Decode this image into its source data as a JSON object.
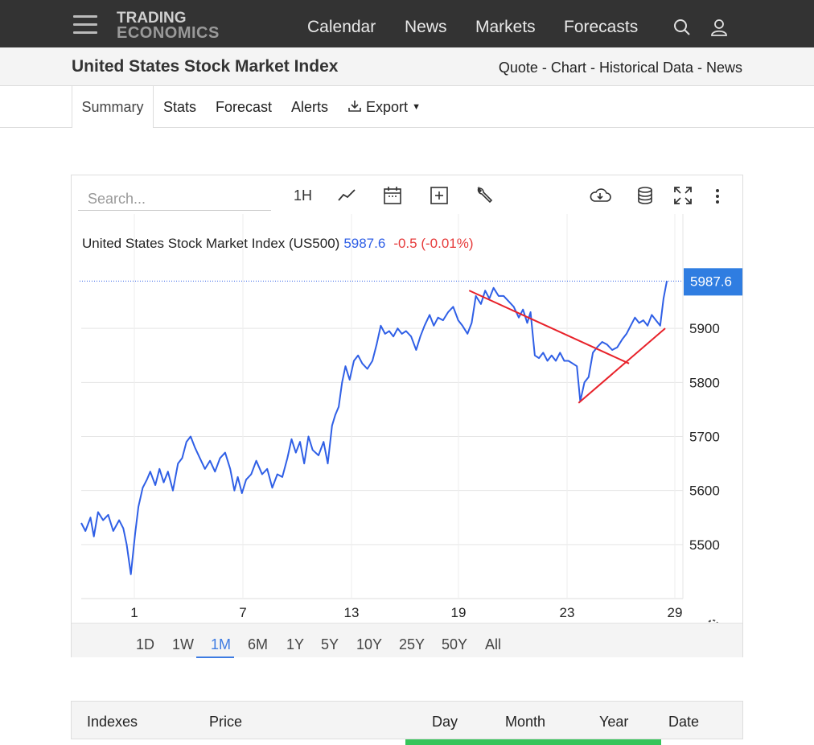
{
  "brand": {
    "line1": "TRADING",
    "line2": "ECONOMICS"
  },
  "nav": {
    "calendar": "Calendar",
    "news": "News",
    "markets": "Markets",
    "forecasts": "Forecasts"
  },
  "page": {
    "title": "United States Stock Market Index"
  },
  "quicklinks": {
    "quote": "Quote",
    "chart": "Chart",
    "historical": "Historical Data",
    "news": "News",
    "sep": " - "
  },
  "tabs": {
    "summary": "Summary",
    "stats": "Stats",
    "forecast": "Forecast",
    "alerts": "Alerts",
    "export": "Export"
  },
  "toolbar": {
    "search_placeholder": "Search...",
    "interval": "1H"
  },
  "chart_header": {
    "name": "United States Stock Market Index (US500)",
    "price": "5987.6",
    "change": "-0.5 (-0.01%)"
  },
  "ranges": [
    "1D",
    "1W",
    "1M",
    "6M",
    "1Y",
    "5Y",
    "10Y",
    "25Y",
    "50Y",
    "All"
  ],
  "active_range": "1M",
  "table": {
    "headers": [
      "Indexes",
      "Price",
      "Day",
      "Month",
      "Year",
      "Date"
    ]
  },
  "colors": {
    "line": "#2f5fe6",
    "trend": "#e8222a",
    "price_badge": "#2f7de1",
    "down": "#e63a3a",
    "accent": "#3d7be2"
  },
  "chart_data": {
    "type": "line",
    "x_ticks": [
      "1",
      "7",
      "13",
      "19",
      "23",
      "29"
    ],
    "y_ticks": [
      5500,
      5600,
      5700,
      5800,
      5900
    ],
    "ylim": [
      5400,
      6000
    ],
    "last_value": "5987.6",
    "series": [
      {
        "values": [
          [
            0,
            5540
          ],
          [
            0.5,
            5525
          ],
          [
            1.1,
            5550
          ],
          [
            1.5,
            5515
          ],
          [
            2,
            5560
          ],
          [
            2.6,
            5545
          ],
          [
            3.2,
            5555
          ],
          [
            3.8,
            5525
          ],
          [
            4.5,
            5545
          ],
          [
            5,
            5530
          ],
          [
            5.4,
            5500
          ],
          [
            5.9,
            5445
          ],
          [
            6.4,
            5520
          ],
          [
            6.8,
            5570
          ],
          [
            7.3,
            5605
          ],
          [
            7.8,
            5620
          ],
          [
            8.2,
            5635
          ],
          [
            8.8,
            5610
          ],
          [
            9.3,
            5640
          ],
          [
            9.8,
            5615
          ],
          [
            10.3,
            5635
          ],
          [
            10.9,
            5600
          ],
          [
            11.5,
            5650
          ],
          [
            12,
            5660
          ],
          [
            12.5,
            5690
          ],
          [
            13,
            5700
          ],
          [
            13.5,
            5680
          ],
          [
            14.1,
            5660
          ],
          [
            14.7,
            5640
          ],
          [
            15.3,
            5655
          ],
          [
            15.9,
            5635
          ],
          [
            16.5,
            5660
          ],
          [
            17.1,
            5670
          ],
          [
            17.7,
            5640
          ],
          [
            18.2,
            5600
          ],
          [
            18.6,
            5625
          ],
          [
            19.1,
            5595
          ],
          [
            19.6,
            5620
          ],
          [
            20.2,
            5630
          ],
          [
            20.8,
            5655
          ],
          [
            21.5,
            5630
          ],
          [
            22.1,
            5640
          ],
          [
            22.7,
            5605
          ],
          [
            23.3,
            5630
          ],
          [
            23.9,
            5625
          ],
          [
            24.5,
            5660
          ],
          [
            25,
            5695
          ],
          [
            25.5,
            5670
          ],
          [
            26,
            5690
          ],
          [
            26.5,
            5650
          ],
          [
            27,
            5700
          ],
          [
            27.5,
            5675
          ],
          [
            28.2,
            5665
          ],
          [
            28.8,
            5690
          ],
          [
            29.3,
            5650
          ],
          [
            29.8,
            5720
          ],
          [
            30.2,
            5740
          ],
          [
            30.6,
            5755
          ],
          [
            31,
            5800
          ],
          [
            31.4,
            5830
          ],
          [
            31.9,
            5805
          ],
          [
            32.4,
            5840
          ],
          [
            32.9,
            5850
          ],
          [
            33.4,
            5835
          ],
          [
            34,
            5825
          ],
          [
            34.6,
            5840
          ],
          [
            35.1,
            5870
          ],
          [
            35.6,
            5905
          ],
          [
            36.1,
            5890
          ],
          [
            36.6,
            5895
          ],
          [
            37.1,
            5885
          ],
          [
            37.6,
            5900
          ],
          [
            38.1,
            5890
          ],
          [
            38.6,
            5895
          ],
          [
            39.2,
            5885
          ],
          [
            39.8,
            5860
          ],
          [
            40.3,
            5885
          ],
          [
            40.8,
            5905
          ],
          [
            41.4,
            5925
          ],
          [
            41.9,
            5905
          ],
          [
            42.4,
            5920
          ],
          [
            43,
            5915
          ],
          [
            43.6,
            5930
          ],
          [
            44.2,
            5940
          ],
          [
            44.8,
            5915
          ],
          [
            45.3,
            5905
          ],
          [
            45.9,
            5890
          ],
          [
            46.4,
            5910
          ],
          [
            46.9,
            5960
          ],
          [
            47.5,
            5945
          ],
          [
            48,
            5970
          ],
          [
            48.5,
            5955
          ],
          [
            49,
            5975
          ],
          [
            49.6,
            5960
          ],
          [
            50.2,
            5960
          ],
          [
            50.8,
            5950
          ],
          [
            51.4,
            5940
          ],
          [
            52,
            5920
          ],
          [
            52.5,
            5935
          ],
          [
            53,
            5910
          ],
          [
            53.4,
            5930
          ],
          [
            53.9,
            5850
          ],
          [
            54.4,
            5845
          ],
          [
            54.9,
            5855
          ],
          [
            55.4,
            5840
          ],
          [
            55.9,
            5850
          ],
          [
            56.4,
            5840
          ],
          [
            56.9,
            5855
          ],
          [
            57.4,
            5840
          ],
          [
            57.9,
            5840
          ],
          [
            58.4,
            5835
          ],
          [
            58.9,
            5830
          ],
          [
            59.3,
            5765
          ],
          [
            59.8,
            5800
          ],
          [
            60.3,
            5810
          ],
          [
            60.8,
            5855
          ],
          [
            61.3,
            5865
          ],
          [
            61.9,
            5875
          ],
          [
            62.5,
            5870
          ],
          [
            63.1,
            5860
          ],
          [
            63.7,
            5865
          ],
          [
            64.3,
            5880
          ],
          [
            64.8,
            5890
          ],
          [
            65.3,
            5905
          ],
          [
            65.8,
            5920
          ],
          [
            66.3,
            5910
          ],
          [
            66.8,
            5915
          ],
          [
            67.3,
            5905
          ],
          [
            67.8,
            5925
          ],
          [
            68.3,
            5915
          ],
          [
            68.8,
            5905
          ],
          [
            69.2,
            5955
          ],
          [
            69.6,
            5988
          ]
        ]
      }
    ],
    "trend_lines": [
      {
        "from": [
          46.1,
          5970
        ],
        "to": [
          65.1,
          5835
        ]
      },
      {
        "from": [
          59.1,
          5762
        ],
        "to": [
          69.4,
          5900
        ]
      }
    ]
  }
}
